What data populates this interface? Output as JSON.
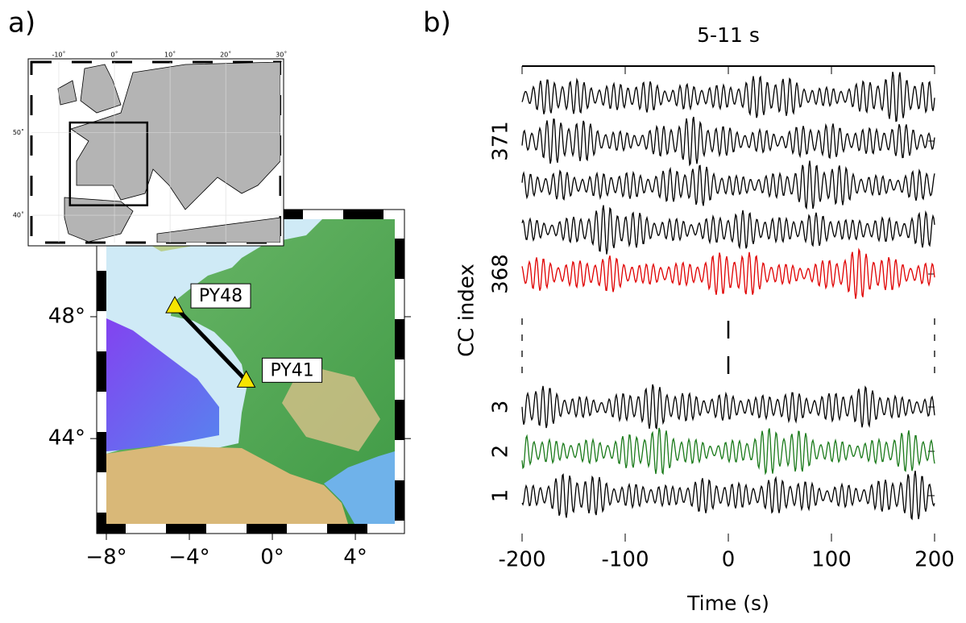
{
  "panel_labels": [
    "a)",
    "b)"
  ],
  "map": {
    "xlim": [
      -8,
      5.9
    ],
    "ylim": [
      41.2,
      51.2
    ],
    "xticks": [
      {
        "value": -8,
        "label": "−8°"
      },
      {
        "value": -4,
        "label": "−4°"
      },
      {
        "value": 0,
        "label": "0°"
      },
      {
        "value": 4,
        "label": "4°"
      }
    ],
    "yticks": [
      {
        "value": 44,
        "label": "44°"
      },
      {
        "value": 48,
        "label": "48°"
      }
    ],
    "stations": [
      {
        "name": "PY48",
        "lon": -4.7,
        "lat": 48.34
      },
      {
        "name": "PY41",
        "lon": -1.26,
        "lat": 45.9
      }
    ]
  },
  "inset": {
    "xlim": [
      -15.5,
      30.4
    ],
    "ylim": [
      36.3,
      58.9
    ],
    "xticks": [
      {
        "value": -10,
        "label": "-10˚"
      },
      {
        "value": 0,
        "label": "0˚"
      },
      {
        "value": 10,
        "label": "10˚"
      },
      {
        "value": 20,
        "label": "20˚"
      },
      {
        "value": 30,
        "label": "30˚"
      }
    ],
    "yticks": [
      {
        "value": 40,
        "label": "40˚"
      },
      {
        "value": 50,
        "label": "50˚"
      }
    ]
  },
  "chart_data": {
    "type": "seismogram",
    "title": "5-11 s",
    "x_label": "Time (s)",
    "y_label": "CC index",
    "xlim": [
      -200,
      200
    ],
    "xticks": [
      -200,
      -100,
      0,
      100,
      200
    ],
    "yticks": [
      1,
      2,
      3,
      368,
      371
    ],
    "axis_break": [
      3,
      368
    ],
    "series": [
      {
        "index": 1,
        "color": "#000000"
      },
      {
        "index": 2,
        "color": "#1a7a1a"
      },
      {
        "index": 3,
        "color": "#000000"
      },
      {
        "index": 368,
        "color": "#e00000"
      },
      {
        "index": 369,
        "color": "#000000"
      },
      {
        "index": 370,
        "color": "#000000"
      },
      {
        "index": 371,
        "color": "#000000"
      },
      {
        "index": 372,
        "color": "#000000"
      }
    ]
  }
}
